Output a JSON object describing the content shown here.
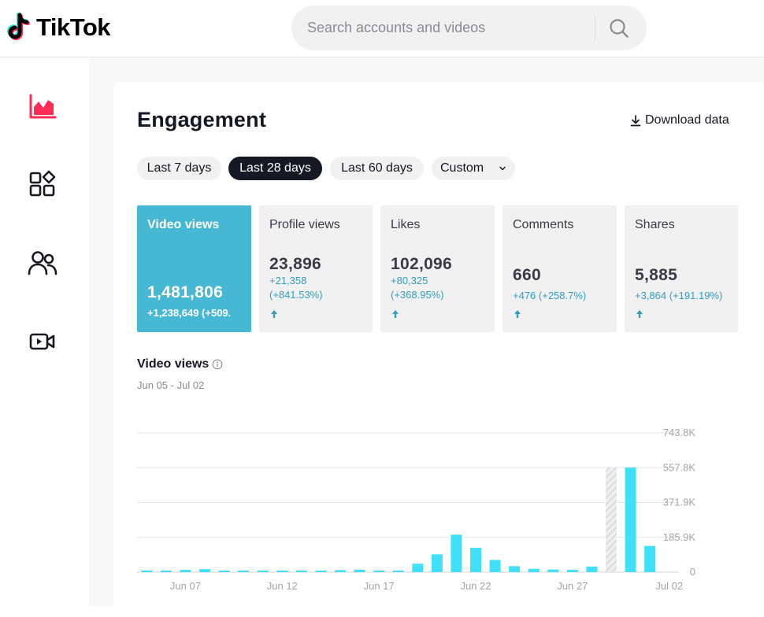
{
  "app": {
    "brand": "TikTok",
    "search": {
      "placeholder": "Search accounts and videos"
    }
  },
  "sidenav": {
    "items": [
      {
        "icon": "analytics-chart-icon",
        "active": true
      },
      {
        "icon": "content-grid-icon",
        "active": false
      },
      {
        "icon": "followers-icon",
        "active": false
      },
      {
        "icon": "live-video-icon",
        "active": false
      }
    ]
  },
  "engagement": {
    "title": "Engagement",
    "download_label": "Download data",
    "ranges": [
      "Last 7 days",
      "Last 28 days",
      "Last 60 days"
    ],
    "custom_label": "Custom",
    "selected_range": "Last 28 days"
  },
  "metrics": [
    {
      "label": "Video views",
      "value": "1,481,806",
      "change": "+1,238,649 (+509.",
      "active": true
    },
    {
      "label": "Profile views",
      "value": "23,896",
      "change": "+21,358\n(+841.53%)",
      "active": false
    },
    {
      "label": "Likes",
      "value": "102,096",
      "change": "+80,325\n(+368.95%)",
      "active": false
    },
    {
      "label": "Comments",
      "value": "660",
      "change": "+476 (+258.7%)",
      "active": false
    },
    {
      "label": "Shares",
      "value": "5,885",
      "change": "+3,864 (+191.19%)",
      "active": false
    }
  ],
  "chart_section": {
    "title": "Video views",
    "date_range": "Jun 05 - Jul 02"
  },
  "colors": {
    "accent_metric": "#47b8d3",
    "bar": "#40e0f8",
    "brand_pink": "#fe2c55",
    "brand_cyan": "#25f4ee",
    "change_text": "#2f9fc0"
  },
  "chart_data": {
    "type": "bar",
    "categories": [
      "Jun 05",
      "Jun 06",
      "Jun 07",
      "Jun 08",
      "Jun 09",
      "Jun 10",
      "Jun 11",
      "Jun 12",
      "Jun 13",
      "Jun 14",
      "Jun 15",
      "Jun 16",
      "Jun 17",
      "Jun 18",
      "Jun 19",
      "Jun 20",
      "Jun 21",
      "Jun 22",
      "Jun 23",
      "Jun 24",
      "Jun 25",
      "Jun 26",
      "Jun 27",
      "Jun 28",
      "Jun 29",
      "Jun 30",
      "Jul 01",
      "Jul 02"
    ],
    "values": [
      5000,
      4000,
      12000,
      16000,
      5000,
      3000,
      3000,
      4000,
      6000,
      7000,
      11000,
      13000,
      5000,
      4000,
      45000,
      95000,
      200000,
      130000,
      65000,
      32000,
      18000,
      14000,
      12000,
      30000,
      null,
      557800,
      140000,
      null
    ],
    "highlighted_category": "Jun 29",
    "x_tick_labels": [
      "Jun 07",
      "Jun 12",
      "Jun 17",
      "Jun 22",
      "Jun 27",
      "Jul 02"
    ],
    "y_tick_labels": [
      "0",
      "185.9K",
      "371.9K",
      "557.8K",
      "743.8K"
    ],
    "ylim": [
      0,
      743800
    ],
    "grid": true
  }
}
